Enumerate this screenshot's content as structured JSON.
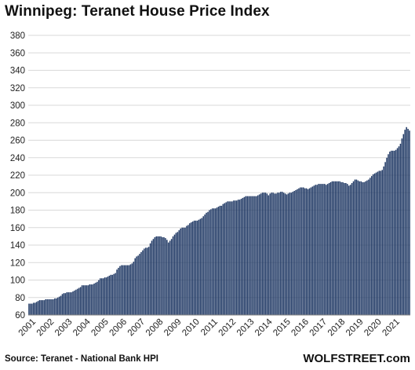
{
  "title": "Winnipeg: Teranet House Price Index",
  "source": "Source: Teranet - National Bank HPI",
  "brand": "WOLFSTREET.com",
  "colors": {
    "bar": "#1f3864",
    "grid": "#d9d9d9",
    "axis": "#808080"
  },
  "chart_data": {
    "type": "bar",
    "title": "Winnipeg: Teranet House Price Index",
    "xlabel": "",
    "ylabel": "",
    "ylim": [
      60,
      380
    ],
    "yticks": [
      60,
      80,
      100,
      120,
      140,
      160,
      180,
      200,
      220,
      240,
      260,
      280,
      300,
      320,
      340,
      360,
      380
    ],
    "grid": true,
    "frequency": "monthly",
    "start": "2001-01",
    "xtick_labels": [
      "2001",
      "2002",
      "2003",
      "2004",
      "2005",
      "2006",
      "2007",
      "2008",
      "2009",
      "2010",
      "2011",
      "2012",
      "2013",
      "2014",
      "2015",
      "2016",
      "2017",
      "2018",
      "2019",
      "2020",
      "2021"
    ],
    "series": [
      {
        "name": "",
        "values": [
          73,
          73,
          73,
          74,
          74,
          75,
          76,
          77,
          77,
          77,
          77,
          78,
          78,
          78,
          78,
          78,
          78,
          79,
          79,
          80,
          81,
          82,
          84,
          85,
          85,
          86,
          86,
          86,
          86,
          87,
          88,
          89,
          90,
          91,
          92,
          94,
          94,
          94,
          94,
          94,
          95,
          95,
          95,
          96,
          97,
          98,
          100,
          102,
          102,
          102,
          103,
          103,
          104,
          105,
          106,
          106,
          107,
          108,
          112,
          114,
          116,
          117,
          117,
          117,
          117,
          117,
          117,
          118,
          119,
          121,
          125,
          127,
          128,
          130,
          132,
          134,
          136,
          137,
          137,
          138,
          142,
          145,
          147,
          149,
          150,
          150,
          150,
          150,
          149,
          149,
          148,
          146,
          143,
          145,
          147,
          150,
          152,
          154,
          155,
          157,
          159,
          160,
          160,
          160,
          162,
          163,
          165,
          166,
          167,
          168,
          168,
          168,
          169,
          170,
          171,
          173,
          175,
          177,
          178,
          180,
          181,
          182,
          182,
          182,
          183,
          184,
          185,
          185,
          187,
          188,
          189,
          190,
          190,
          190,
          190,
          191,
          191,
          191,
          192,
          192,
          193,
          194,
          195,
          196,
          196,
          196,
          196,
          196,
          196,
          196,
          196,
          197,
          198,
          199,
          200,
          200,
          200,
          199,
          197,
          199,
          200,
          200,
          199,
          199,
          200,
          200,
          201,
          201,
          200,
          199,
          198,
          199,
          200,
          200,
          201,
          202,
          203,
          204,
          205,
          206,
          206,
          206,
          205,
          205,
          204,
          205,
          206,
          207,
          208,
          209,
          209,
          210,
          210,
          210,
          210,
          210,
          209,
          210,
          211,
          212,
          213,
          213,
          213,
          213,
          213,
          213,
          212,
          212,
          211,
          211,
          210,
          208,
          209,
          211,
          213,
          215,
          215,
          214,
          213,
          213,
          212,
          212,
          213,
          214,
          215,
          217,
          219,
          221,
          222,
          223,
          224,
          225,
          225,
          226,
          230,
          235,
          240,
          244,
          247,
          248,
          248,
          248,
          249,
          251,
          253,
          256,
          262,
          267,
          272,
          275,
          273,
          271
        ]
      }
    ]
  }
}
